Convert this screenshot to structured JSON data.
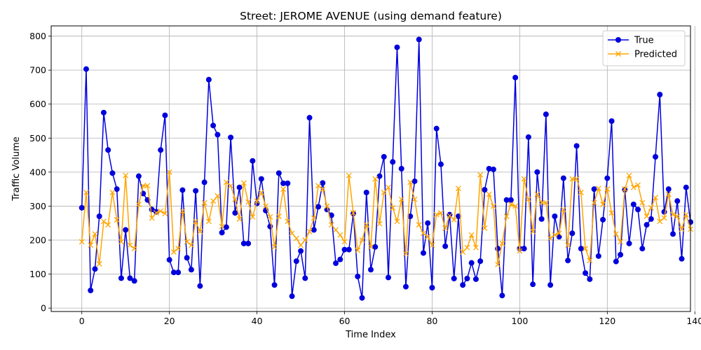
{
  "chart_data": {
    "type": "line",
    "title": "Street: JEROME AVENUE (using demand feature)",
    "xlabel": "Time Index",
    "ylabel": "Traffic Volume",
    "xlim": [
      -7,
      139
    ],
    "ylim": [
      -10,
      830
    ],
    "xticks": [
      0,
      20,
      40,
      60,
      80,
      100,
      120,
      140
    ],
    "yticks": [
      0,
      100,
      200,
      300,
      400,
      500,
      600,
      700,
      800
    ],
    "grid": true,
    "legend_position": "top-right",
    "series": [
      {
        "name": "True",
        "color": "#0000dd",
        "marker": "circle",
        "values": [
          295,
          703,
          52,
          115,
          270,
          575,
          465,
          397,
          350,
          88,
          230,
          88,
          80,
          388,
          337,
          318,
          290,
          283,
          465,
          567,
          142,
          105,
          105,
          347,
          148,
          113,
          345,
          65,
          370,
          672,
          537,
          510,
          222,
          238,
          502,
          280,
          355,
          190,
          190,
          433,
          308,
          380,
          287,
          240,
          68,
          397,
          367,
          367,
          35,
          138,
          168,
          88,
          560,
          230,
          298,
          368,
          290,
          273,
          132,
          143,
          172,
          172,
          278,
          93,
          30,
          340,
          113,
          180,
          388,
          445,
          90,
          430,
          767,
          410,
          63,
          270,
          373,
          790,
          162,
          250,
          60,
          528,
          423,
          182,
          275,
          87,
          270,
          68,
          87,
          133,
          85,
          138,
          348,
          410,
          408,
          175,
          37,
          318,
          318,
          678,
          175,
          175,
          503,
          70,
          400,
          262,
          570,
          68,
          270,
          210,
          382,
          140,
          220,
          477,
          175,
          103,
          85,
          350,
          153,
          260,
          382,
          550,
          137,
          157,
          348,
          190,
          305,
          290,
          175,
          245,
          262,
          445,
          628,
          283,
          350,
          218,
          315,
          145,
          355,
          253
        ]
      },
      {
        "name": "Predicted",
        "color": "#ffa500",
        "marker": "x",
        "values": [
          195,
          340,
          185,
          218,
          130,
          255,
          245,
          340,
          260,
          195,
          390,
          185,
          175,
          305,
          360,
          360,
          265,
          280,
          285,
          278,
          400,
          165,
          175,
          285,
          195,
          185,
          255,
          225,
          310,
          255,
          315,
          330,
          240,
          370,
          360,
          320,
          262,
          368,
          312,
          268,
          315,
          340,
          300,
          268,
          180,
          270,
          350,
          255,
          220,
          205,
          185,
          200,
          225,
          265,
          360,
          350,
          300,
          245,
          230,
          215,
          195,
          390,
          280,
          170,
          200,
          245,
          180,
          380,
          248,
          340,
          355,
          295,
          255,
          320,
          160,
          370,
          320,
          245,
          220,
          210,
          185,
          275,
          280,
          235,
          272,
          260,
          352,
          165,
          178,
          215,
          178,
          392,
          235,
          335,
          300,
          128,
          190,
          270,
          305,
          300,
          168,
          380,
          320,
          225,
          335,
          310,
          310,
          205,
          215,
          220,
          290,
          185,
          380,
          380,
          340,
          175,
          140,
          310,
          352,
          305,
          350,
          280,
          218,
          195,
          350,
          390,
          355,
          362,
          310,
          270,
          295,
          325,
          255,
          265,
          335,
          275,
          270,
          232,
          275,
          232
        ]
      }
    ]
  }
}
